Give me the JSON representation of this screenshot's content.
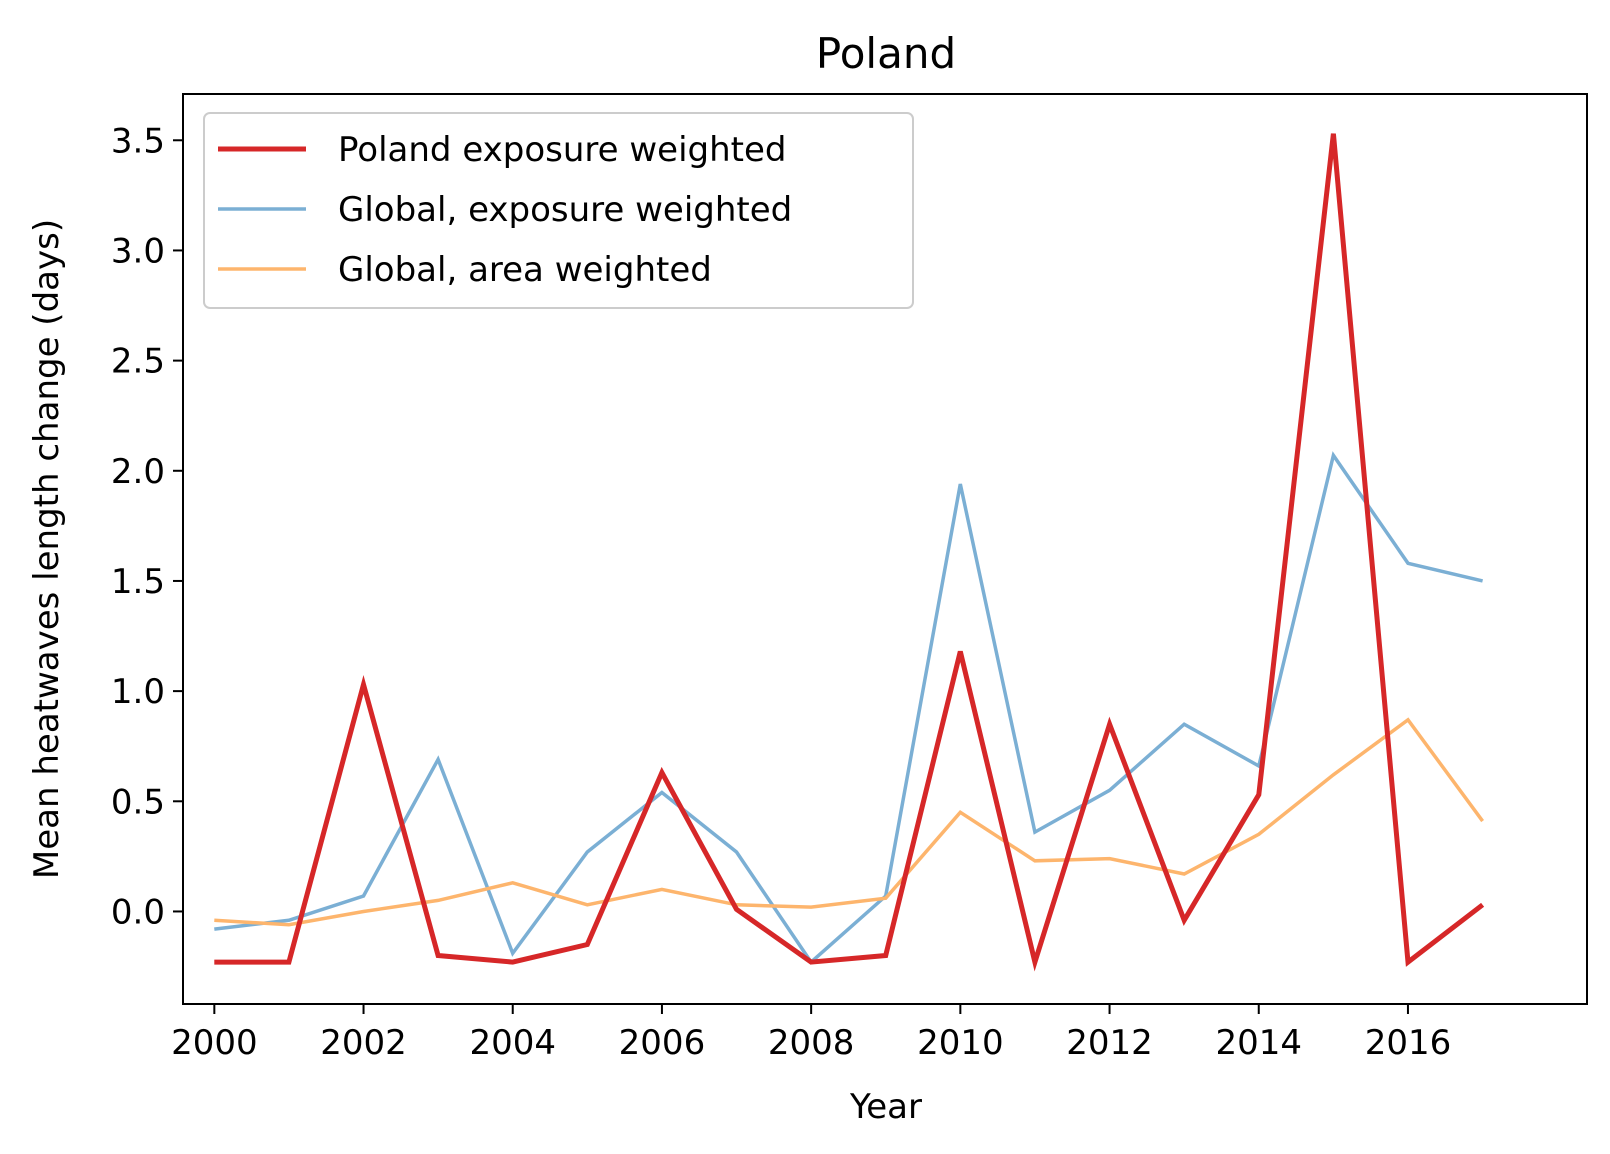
{
  "chart_data": {
    "type": "line",
    "title": "Poland",
    "xlabel": "Year",
    "ylabel": "Mean heatwaves length change (days)",
    "x": [
      2000,
      2001,
      2002,
      2003,
      2004,
      2005,
      2006,
      2007,
      2008,
      2009,
      2010,
      2011,
      2012,
      2013,
      2014,
      2015,
      2016,
      2017
    ],
    "xlim": [
      1999.58,
      2018.4
    ],
    "ylim": [
      -0.42,
      3.71
    ],
    "xticks": [
      2000,
      2002,
      2004,
      2006,
      2008,
      2010,
      2012,
      2014,
      2016
    ],
    "yticks": [
      0.0,
      0.5,
      1.0,
      1.5,
      2.0,
      2.5,
      3.0,
      3.5
    ],
    "ytick_labels": [
      "0.0",
      "0.5",
      "1.0",
      "1.5",
      "2.0",
      "2.5",
      "3.0",
      "3.5"
    ],
    "grid": false,
    "legend_position": "upper-left",
    "series": [
      {
        "name": "Poland exposure weighted",
        "color": "#d62728",
        "values": [
          -0.23,
          -0.23,
          1.03,
          -0.2,
          -0.23,
          -0.15,
          0.63,
          0.01,
          -0.23,
          -0.2,
          1.18,
          -0.23,
          0.85,
          -0.04,
          0.53,
          3.53,
          -0.23,
          0.03
        ]
      },
      {
        "name": "Global, exposure weighted",
        "color": "#7bafd4",
        "values": [
          -0.08,
          -0.04,
          0.07,
          0.69,
          -0.19,
          0.27,
          0.54,
          0.27,
          -0.23,
          0.07,
          1.94,
          0.36,
          0.55,
          0.85,
          0.66,
          2.07,
          1.58,
          1.5
        ]
      },
      {
        "name": "Global, area weighted",
        "color": "#fdb56d",
        "values": [
          -0.04,
          -0.06,
          0.0,
          0.05,
          0.13,
          0.03,
          0.1,
          0.03,
          0.02,
          0.06,
          0.45,
          0.23,
          0.24,
          0.17,
          0.35,
          0.62,
          0.87,
          0.41
        ]
      }
    ]
  }
}
